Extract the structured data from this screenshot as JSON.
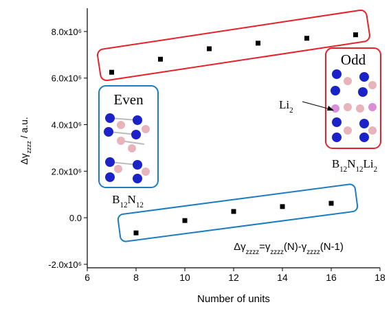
{
  "chart_data": {
    "type": "scatter",
    "x_label": "Number of units",
    "y_label": [
      "Δγ",
      "zzzz",
      "  /  a.u."
    ],
    "xlim": [
      6,
      18
    ],
    "xticks": [
      6,
      8,
      10,
      12,
      14,
      16,
      18
    ],
    "ylim": [
      -2150000,
      9000000
    ],
    "yticks": [
      {
        "value": -2000000,
        "label": "-2.0x10⁶"
      },
      {
        "value": 0,
        "label": "0.0"
      },
      {
        "value": 2000000,
        "label": "2.0x10⁶"
      },
      {
        "value": 4000000,
        "label": "4.0x10⁶"
      },
      {
        "value": 6000000,
        "label": "6.0x10⁶"
      },
      {
        "value": 8000000,
        "label": "8.0x10⁶"
      }
    ],
    "series": [
      {
        "color": "#000000",
        "x": [
          7,
          9,
          11,
          13,
          15,
          17
        ],
        "values": [
          6250000,
          6810000,
          7260000,
          7500000,
          7710000,
          7860000
        ]
      },
      {
        "color": "#000000",
        "x": [
          8,
          10,
          12,
          14,
          16
        ],
        "values": [
          -650000,
          -120000,
          270000,
          480000,
          620000
        ]
      }
    ],
    "annotations": {
      "even": "Even",
      "odd": "Odd",
      "even_formula": [
        "B",
        "12",
        "N",
        "12"
      ],
      "odd_formula": [
        "B",
        "12",
        "N",
        "12",
        "Li",
        "2"
      ],
      "li2": [
        "Li",
        "2"
      ],
      "definition": [
        "Δγ",
        "zzzz",
        "=γ",
        "zzzz",
        "(N)-γ",
        "zzzz",
        "(N-1)"
      ]
    }
  }
}
